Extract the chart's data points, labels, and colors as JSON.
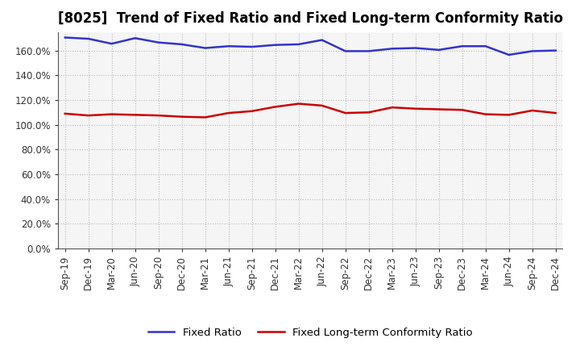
{
  "title": "[8025]  Trend of Fixed Ratio and Fixed Long-term Conformity Ratio",
  "x_labels": [
    "Sep-19",
    "Dec-19",
    "Mar-20",
    "Jun-20",
    "Sep-20",
    "Dec-20",
    "Mar-21",
    "Jun-21",
    "Sep-21",
    "Dec-21",
    "Mar-22",
    "Jun-22",
    "Sep-22",
    "Dec-22",
    "Mar-23",
    "Jun-23",
    "Sep-23",
    "Dec-23",
    "Mar-24",
    "Jun-24",
    "Sep-24",
    "Dec-24"
  ],
  "fixed_ratio": [
    170.5,
    169.5,
    165.5,
    170.0,
    166.5,
    165.0,
    162.0,
    163.5,
    163.0,
    164.5,
    165.0,
    168.5,
    159.5,
    159.5,
    161.5,
    162.0,
    160.5,
    163.5,
    163.5,
    156.5,
    159.5,
    160.0
  ],
  "fixed_lt_ratio": [
    109.0,
    107.5,
    108.5,
    108.0,
    107.5,
    106.5,
    106.0,
    109.5,
    111.0,
    114.5,
    117.0,
    115.5,
    109.5,
    110.0,
    114.0,
    113.0,
    112.5,
    112.0,
    108.5,
    108.0,
    111.5,
    109.5
  ],
  "fixed_ratio_color": "#3333cc",
  "fixed_lt_ratio_color": "#cc0000",
  "background_color": "#ffffff",
  "plot_bg_color": "#f5f5f5",
  "grid_color": "#bbbbbb",
  "ylim": [
    0,
    175
  ],
  "yticks": [
    0,
    20,
    40,
    60,
    80,
    100,
    120,
    140,
    160
  ],
  "legend_fixed_ratio": "Fixed Ratio",
  "legend_fixed_lt_ratio": "Fixed Long-term Conformity Ratio",
  "title_fontsize": 12,
  "axis_fontsize": 8.5,
  "legend_fontsize": 9.5
}
